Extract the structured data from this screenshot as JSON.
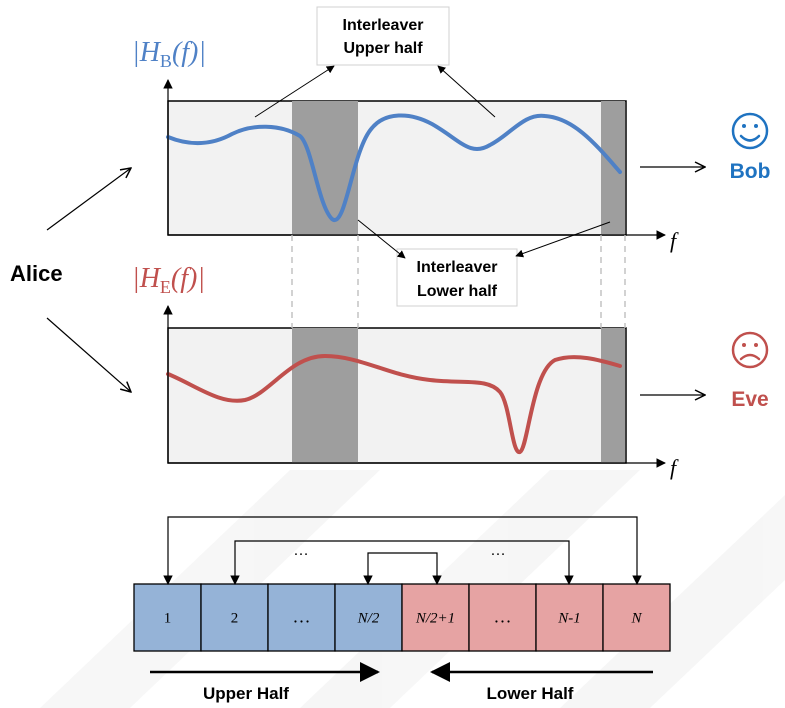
{
  "top_label": {
    "prefix": "|H",
    "sub": "B",
    "suffix": "(f)|"
  },
  "bottom_label": {
    "prefix": "|H",
    "sub": "E",
    "suffix": "(f)|"
  },
  "axis_label": "f",
  "alice": "Alice",
  "bob": "Bob",
  "eve": "Eve",
  "interleaver_upper": {
    "line1": "Interleaver",
    "line2": "Upper half"
  },
  "interleaver_lower": {
    "line1": "Interleaver",
    "line2": "Lower half"
  },
  "cells": [
    "1",
    "2",
    "…",
    "N/2",
    "N/2+1",
    "…",
    "N-1",
    "N"
  ],
  "ellipsis_left": "…",
  "ellipsis_right": "…",
  "upper_half_label": "Upper Half",
  "lower_half_label": "Lower Half",
  "colors": {
    "bob_blue": "#1f73c1",
    "eve_red": "#c0504d",
    "curve_blue": "#4f81c6",
    "curve_red": "#c0504d",
    "cell_blue": "#95b3d7",
    "cell_red": "#e6a3a3",
    "panel_bg": "#f2f2f2",
    "shade": "#9e9e9e"
  },
  "icons": {
    "bob_face": "smiley-face-icon",
    "eve_face": "sad-face-icon"
  }
}
